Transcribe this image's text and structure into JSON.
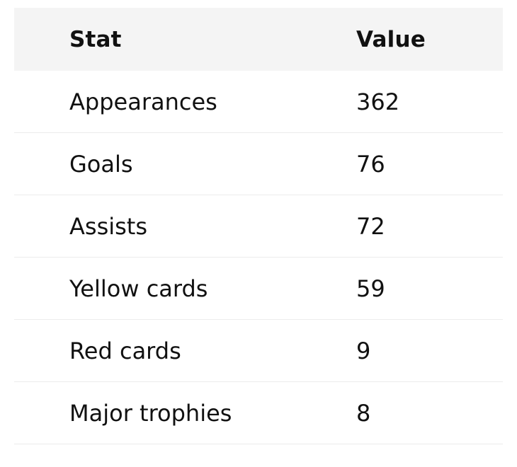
{
  "table": {
    "headers": {
      "stat": "Stat",
      "value": "Value"
    },
    "rows": [
      {
        "stat": "Appearances",
        "value": "362"
      },
      {
        "stat": "Goals",
        "value": "76"
      },
      {
        "stat": "Assists",
        "value": "72"
      },
      {
        "stat": "Yellow cards",
        "value": "59"
      },
      {
        "stat": "Red cards",
        "value": "9"
      },
      {
        "stat": "Major trophies",
        "value": "8"
      }
    ]
  }
}
